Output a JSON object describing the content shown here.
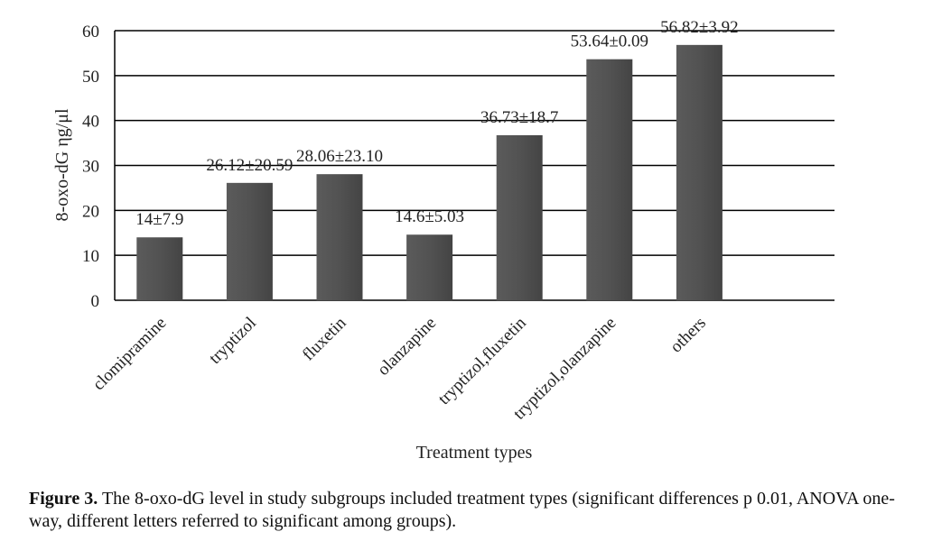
{
  "chart_data": {
    "type": "bar",
    "categories": [
      "clomipramine",
      "tryptizol",
      "fluxetin",
      "olanzapine",
      "tryptizol,fluxetin",
      "tryptizol,olanzapine",
      "others"
    ],
    "values": [
      14,
      26.12,
      28.06,
      14.6,
      36.73,
      53.64,
      56.82
    ],
    "data_labels": [
      "14±7.9",
      "26.12±20.59",
      "28.06±23.10",
      "14.6±5.03",
      "36.73±18.7",
      "53.64±0.09",
      "56.82±3.92"
    ],
    "ylabel": "8-oxo-dG ηg/μl",
    "xlabel": "Treatment types",
    "ylim": [
      0,
      60
    ],
    "yticks": [
      0,
      10,
      20,
      30,
      40,
      50,
      60
    ],
    "grid": true,
    "bar_color": "#4f4f4f"
  },
  "caption": {
    "label": "Figure 3.",
    "text": "The 8-oxo-dG level in study subgroups included treatment types (significant differences p 0.01, ANOVA one-way, different letters referred to significant among groups)."
  }
}
